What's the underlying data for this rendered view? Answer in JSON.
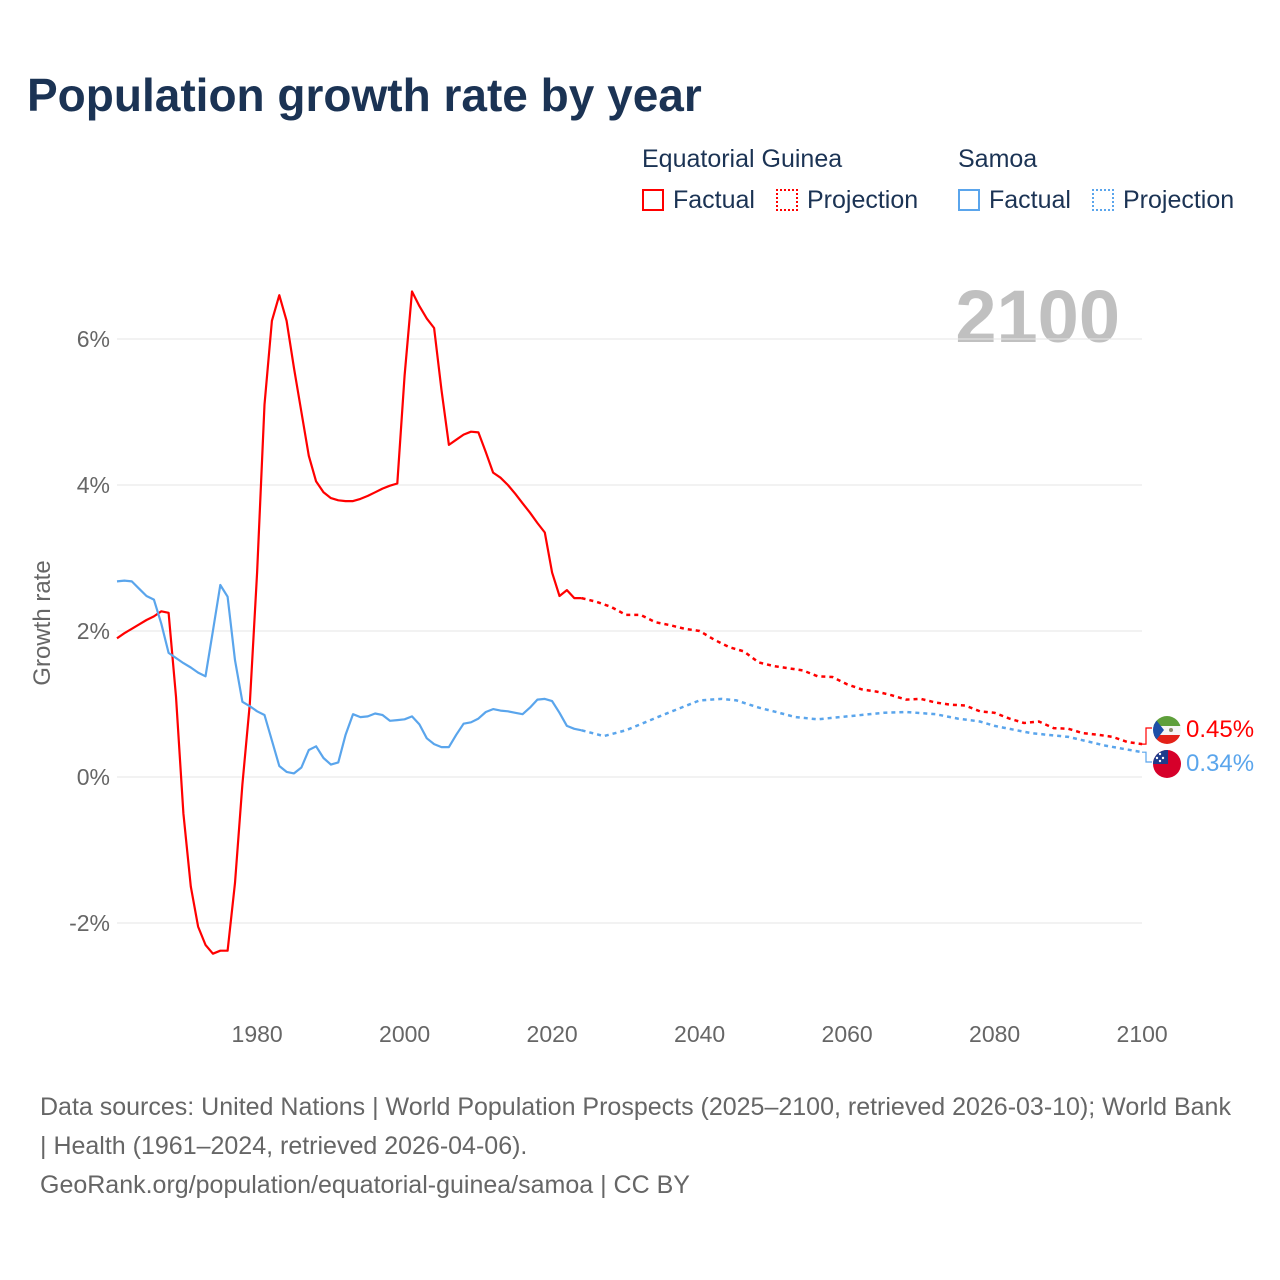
{
  "title": "Population growth rate by year",
  "legend": {
    "groups": [
      {
        "country": "Equatorial Guinea",
        "factual": "Factual",
        "projection": "Projection",
        "color": "#ff0000"
      },
      {
        "country": "Samoa",
        "factual": "Factual",
        "projection": "Projection",
        "color": "#5aa5ec"
      }
    ]
  },
  "year_label": "2100",
  "footer": {
    "sources": "Data sources: United Nations | World Population Prospects (2025–2100, retrieved 2026-03-10); World Bank | Health (1961–2024, retrieved 2026-04-06).",
    "credit": "GeoRank.org/population/equatorial-guinea/samoa | CC BY"
  },
  "chart_data": {
    "type": "line",
    "title": "Population growth rate by year",
    "xlabel": "",
    "ylabel": "Growth rate",
    "xlim": [
      1961,
      2100
    ],
    "ylim": [
      -3,
      7.5
    ],
    "x_ticks": [
      "1980",
      "2000",
      "2020",
      "2040",
      "2060",
      "2080",
      "2100"
    ],
    "y_ticks": [
      "-2%",
      "0%",
      "2%",
      "4%",
      "6%"
    ],
    "grid": true,
    "series": [
      {
        "name": "Equatorial Guinea",
        "color": "#ff0000",
        "end_label": "0.45%",
        "factual_start_year": 1961,
        "factual": [
          1.9,
          1.97,
          2.03,
          2.09,
          2.15,
          2.2,
          2.27,
          2.25,
          1.1,
          -0.5,
          -1.5,
          -2.05,
          -2.3,
          -2.42,
          -2.38,
          -2.38,
          -1.45,
          -0.1,
          1.0,
          2.8,
          5.1,
          6.25,
          6.6,
          6.25,
          5.6,
          5.0,
          4.4,
          4.05,
          3.9,
          3.82,
          3.79,
          3.78,
          3.78,
          3.81,
          3.85,
          3.9,
          3.95,
          3.99,
          4.02,
          5.5,
          6.65,
          6.45,
          6.28,
          6.15,
          5.3,
          4.55,
          4.62,
          4.69,
          4.73,
          4.72,
          4.45,
          4.17,
          4.1,
          4.0,
          3.88,
          3.75,
          3.62,
          3.48,
          3.35,
          2.8,
          2.48,
          2.56,
          2.45,
          2.45
        ],
        "projection": [
          [
            2024,
            2.45
          ],
          [
            2026,
            2.4
          ],
          [
            2028,
            2.33
          ],
          [
            2030,
            2.22
          ],
          [
            2032,
            2.22
          ],
          [
            2034,
            2.12
          ],
          [
            2036,
            2.08
          ],
          [
            2038,
            2.03
          ],
          [
            2040,
            2.0
          ],
          [
            2042,
            1.88
          ],
          [
            2044,
            1.78
          ],
          [
            2046,
            1.72
          ],
          [
            2048,
            1.57
          ],
          [
            2050,
            1.52
          ],
          [
            2052,
            1.49
          ],
          [
            2054,
            1.46
          ],
          [
            2056,
            1.38
          ],
          [
            2058,
            1.37
          ],
          [
            2060,
            1.27
          ],
          [
            2062,
            1.2
          ],
          [
            2064,
            1.17
          ],
          [
            2066,
            1.12
          ],
          [
            2068,
            1.06
          ],
          [
            2070,
            1.07
          ],
          [
            2072,
            1.02
          ],
          [
            2074,
            0.99
          ],
          [
            2076,
            0.98
          ],
          [
            2078,
            0.9
          ],
          [
            2080,
            0.88
          ],
          [
            2082,
            0.8
          ],
          [
            2084,
            0.74
          ],
          [
            2086,
            0.76
          ],
          [
            2088,
            0.67
          ],
          [
            2090,
            0.66
          ],
          [
            2092,
            0.6
          ],
          [
            2094,
            0.58
          ],
          [
            2096,
            0.55
          ],
          [
            2098,
            0.48
          ],
          [
            2100,
            0.45
          ]
        ]
      },
      {
        "name": "Samoa",
        "color": "#5aa5ec",
        "end_label": "0.34%",
        "factual_start_year": 1961,
        "factual": [
          2.68,
          2.69,
          2.68,
          2.58,
          2.48,
          2.43,
          2.1,
          1.7,
          1.63,
          1.56,
          1.5,
          1.43,
          1.38,
          2.0,
          2.63,
          2.47,
          1.6,
          1.03,
          0.97,
          0.9,
          0.85,
          0.5,
          0.15,
          0.07,
          0.05,
          0.13,
          0.37,
          0.42,
          0.26,
          0.17,
          0.2,
          0.58,
          0.86,
          0.82,
          0.83,
          0.87,
          0.85,
          0.77,
          0.78,
          0.79,
          0.83,
          0.72,
          0.53,
          0.45,
          0.41,
          0.41,
          0.58,
          0.73,
          0.75,
          0.8,
          0.89,
          0.93,
          0.91,
          0.9,
          0.88,
          0.86,
          0.95,
          1.06,
          1.07,
          1.04,
          0.88,
          0.7,
          0.66,
          0.64
        ],
        "projection": [
          [
            2024,
            0.64
          ],
          [
            2027,
            0.56
          ],
          [
            2030,
            0.64
          ],
          [
            2035,
            0.85
          ],
          [
            2038,
            0.97
          ],
          [
            2040,
            1.05
          ],
          [
            2043,
            1.07
          ],
          [
            2045,
            1.05
          ],
          [
            2048,
            0.95
          ],
          [
            2050,
            0.9
          ],
          [
            2053,
            0.82
          ],
          [
            2056,
            0.79
          ],
          [
            2060,
            0.83
          ],
          [
            2065,
            0.88
          ],
          [
            2068,
            0.89
          ],
          [
            2072,
            0.86
          ],
          [
            2075,
            0.8
          ],
          [
            2078,
            0.76
          ],
          [
            2080,
            0.7
          ],
          [
            2085,
            0.6
          ],
          [
            2090,
            0.55
          ],
          [
            2095,
            0.43
          ],
          [
            2100,
            0.34
          ]
        ]
      }
    ]
  }
}
